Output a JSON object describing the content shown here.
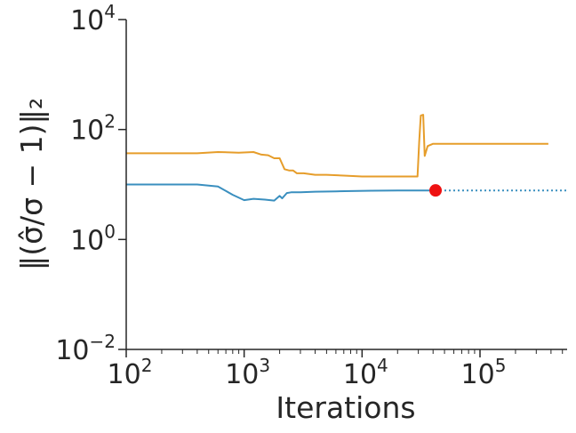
{
  "chart_data": {
    "type": "line",
    "title": "",
    "xlabel": "Iterations",
    "ylabel": "‖(σ̂/σ − 1)‖₂",
    "xscale": "log",
    "yscale": "log",
    "xlim": [
      100,
      550000
    ],
    "ylim": [
      0.01,
      10000
    ],
    "grid": false,
    "legend": "none",
    "x_ticks": [
      {
        "value": 100,
        "base": "10",
        "exp": "2"
      },
      {
        "value": 1000,
        "base": "10",
        "exp": "3"
      },
      {
        "value": 10000,
        "base": "10",
        "exp": "4"
      },
      {
        "value": 100000,
        "base": "10",
        "exp": "5"
      }
    ],
    "y_ticks": [
      {
        "value": 0.01,
        "base": "10",
        "exp": "−2"
      },
      {
        "value": 1,
        "base": "10",
        "exp": "0"
      },
      {
        "value": 100,
        "base": "10",
        "exp": "2"
      },
      {
        "value": 10000,
        "base": "10",
        "exp": "4"
      }
    ],
    "series": [
      {
        "color": "#e69d2a",
        "style": "solid",
        "points": [
          [
            100,
            37
          ],
          [
            200,
            37
          ],
          [
            400,
            37
          ],
          [
            600,
            39
          ],
          [
            900,
            38
          ],
          [
            1200,
            39
          ],
          [
            1400,
            35
          ],
          [
            1600,
            34
          ],
          [
            1800,
            30
          ],
          [
            2000,
            30
          ],
          [
            2200,
            19
          ],
          [
            2400,
            18
          ],
          [
            2600,
            18
          ],
          [
            2800,
            16
          ],
          [
            3200,
            16
          ],
          [
            4000,
            15
          ],
          [
            5000,
            15
          ],
          [
            7000,
            14.5
          ],
          [
            10000,
            14
          ],
          [
            15000,
            14
          ],
          [
            20000,
            14
          ],
          [
            29500,
            14
          ],
          [
            30500,
            60
          ],
          [
            31500,
            180
          ],
          [
            33000,
            185
          ],
          [
            34000,
            33
          ],
          [
            36000,
            50
          ],
          [
            40000,
            55
          ],
          [
            60000,
            55
          ],
          [
            150000,
            55
          ],
          [
            380000,
            55
          ]
        ]
      },
      {
        "color": "#3a8fbf",
        "style": "solid",
        "points": [
          [
            100,
            10
          ],
          [
            200,
            10
          ],
          [
            400,
            10
          ],
          [
            600,
            9.2
          ],
          [
            800,
            6.5
          ],
          [
            1000,
            5.2
          ],
          [
            1200,
            5.5
          ],
          [
            1500,
            5.3
          ],
          [
            1800,
            5.1
          ],
          [
            2000,
            6.2
          ],
          [
            2100,
            5.6
          ],
          [
            2300,
            7
          ],
          [
            2500,
            7.2
          ],
          [
            3000,
            7.2
          ],
          [
            4000,
            7.4
          ],
          [
            6000,
            7.5
          ],
          [
            8000,
            7.6
          ],
          [
            12000,
            7.7
          ],
          [
            20000,
            7.8
          ],
          [
            30000,
            7.8
          ],
          [
            42000,
            7.8
          ]
        ]
      },
      {
        "color": "#3a8fbf",
        "style": "dotted",
        "points": [
          [
            42000,
            7.8
          ],
          [
            550000,
            7.8
          ]
        ]
      }
    ],
    "markers": [
      {
        "x": 42000,
        "y": 7.8,
        "color": "#ee1111"
      }
    ]
  }
}
